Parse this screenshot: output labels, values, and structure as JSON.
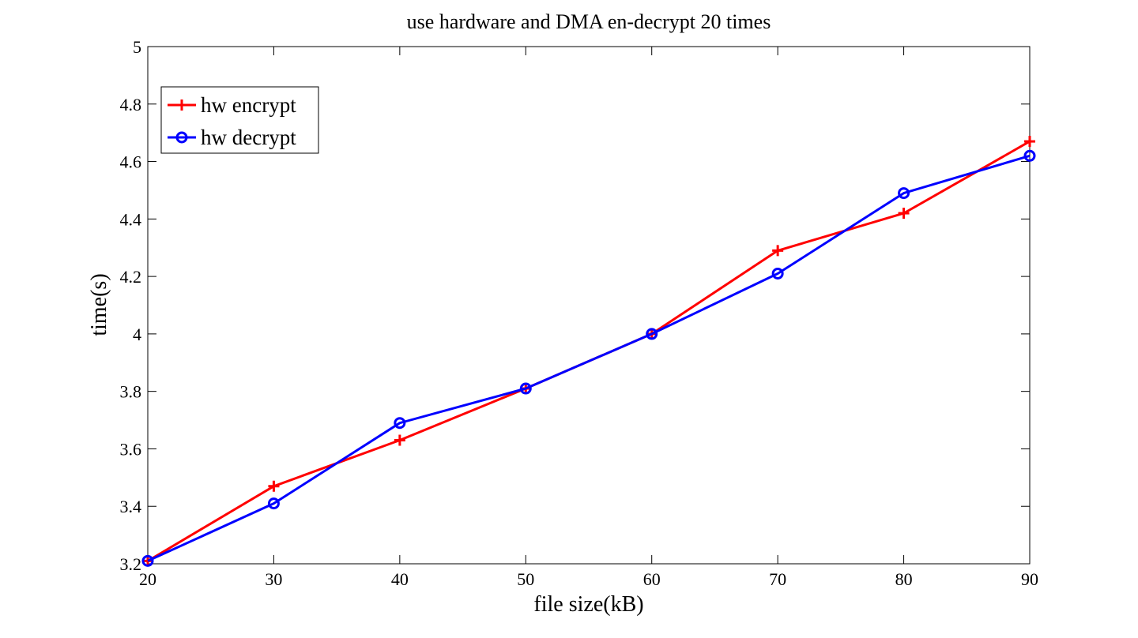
{
  "chart_data": {
    "type": "line",
    "title": "use hardware and DMA en-decrypt 20 times",
    "xlabel": "file size(kB)",
    "ylabel": "time(s)",
    "xlim": [
      20,
      90
    ],
    "ylim": [
      3.2,
      5
    ],
    "x_ticks": [
      20,
      30,
      40,
      50,
      60,
      70,
      80,
      90
    ],
    "y_ticks": [
      3.2,
      3.4,
      3.6,
      3.8,
      4,
      4.2,
      4.4,
      4.6,
      4.8,
      5
    ],
    "x_tick_labels": [
      "20",
      "30",
      "40",
      "50",
      "60",
      "70",
      "80",
      "90"
    ],
    "y_tick_labels": [
      "3.2",
      "3.4",
      "3.6",
      "3.8",
      "4",
      "4.2",
      "4.4",
      "4.6",
      "4.8",
      "5"
    ],
    "x": [
      20,
      30,
      40,
      50,
      60,
      70,
      80,
      90
    ],
    "series": [
      {
        "name": "hw encrypt",
        "color": "#ff0000",
        "marker": "plus",
        "values": [
          3.21,
          3.47,
          3.63,
          3.81,
          4.0,
          4.29,
          4.42,
          4.67
        ]
      },
      {
        "name": "hw decrypt",
        "color": "#0000ff",
        "marker": "circle",
        "values": [
          3.21,
          3.41,
          3.69,
          3.81,
          4.0,
          4.21,
          4.49,
          4.62
        ]
      }
    ],
    "grid": false,
    "legend_position": "top-left"
  }
}
